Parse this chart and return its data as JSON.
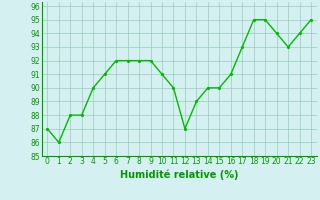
{
  "x": [
    0,
    1,
    2,
    3,
    4,
    5,
    6,
    7,
    8,
    9,
    10,
    11,
    12,
    13,
    14,
    15,
    16,
    17,
    18,
    19,
    20,
    21,
    22,
    23
  ],
  "y": [
    87,
    86,
    88,
    88,
    90,
    91,
    92,
    92,
    92,
    92,
    91,
    90,
    87,
    89,
    90,
    90,
    91,
    93,
    95,
    95,
    94,
    93,
    94,
    95
  ],
  "xlabel": "Humidité relative (%)",
  "ylim": [
    85,
    96
  ],
  "xlim_min": -0.5,
  "xlim_max": 23.5,
  "yticks": [
    85,
    86,
    87,
    88,
    89,
    90,
    91,
    92,
    93,
    94,
    95,
    96
  ],
  "xticks": [
    0,
    1,
    2,
    3,
    4,
    5,
    6,
    7,
    8,
    9,
    10,
    11,
    12,
    13,
    14,
    15,
    16,
    17,
    18,
    19,
    20,
    21,
    22,
    23
  ],
  "line_color": "#00bb00",
  "marker_color": "#00bb00",
  "bg_color": "#d5f0f0",
  "grid_color": "#99ccbb",
  "tick_label_color": "#009900",
  "xlabel_color": "#009900",
  "xlabel_fontsize": 7,
  "tick_fontsize": 5.5,
  "line_width": 1.0,
  "marker_size": 2.5
}
